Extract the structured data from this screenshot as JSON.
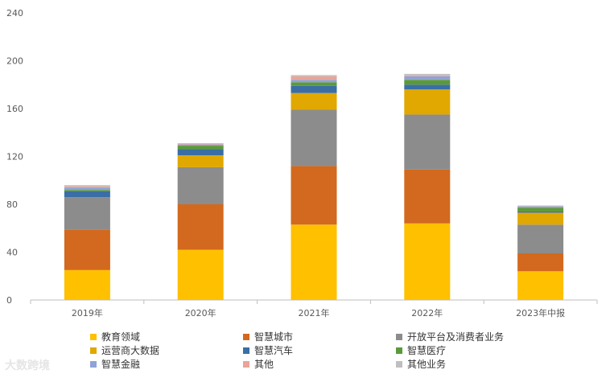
{
  "chart_data": {
    "type": "bar",
    "stacked": true,
    "categories": [
      "2019年",
      "2020年",
      "2021年",
      "2022年",
      "2023年中报"
    ],
    "ylim": [
      0,
      240
    ],
    "yticks": [
      0,
      40,
      80,
      120,
      160,
      200,
      240
    ],
    "grid": false,
    "legend_position": "bottom",
    "series": [
      {
        "name": "教育领域",
        "color": "#FFC000",
        "values": [
          25,
          42,
          63,
          64,
          24
        ]
      },
      {
        "name": "智慧城市",
        "color": "#D2691E",
        "values": [
          34,
          38,
          49,
          45,
          15
        ]
      },
      {
        "name": "开放平台及消费者业务",
        "color": "#8C8C8C",
        "values": [
          27,
          31,
          47,
          46,
          24
        ]
      },
      {
        "name": "运营商大数据",
        "color": "#E0A800",
        "values": [
          0,
          10,
          14,
          21,
          10
        ]
      },
      {
        "name": "智慧汽车",
        "color": "#3A6EA5",
        "values": [
          5,
          5,
          6,
          4,
          1
        ]
      },
      {
        "name": "智慧医疗",
        "color": "#5B9A3A",
        "values": [
          1,
          3,
          3,
          4,
          3
        ]
      },
      {
        "name": "智慧金融",
        "color": "#8FA3D6",
        "values": [
          2,
          1,
          2,
          3,
          1
        ]
      },
      {
        "name": "其他",
        "color": "#E8A598",
        "values": [
          1,
          1,
          3,
          1,
          0
        ]
      },
      {
        "name": "其他业务",
        "color": "#BFBFBF",
        "values": [
          1,
          0,
          1,
          1,
          1
        ]
      }
    ]
  },
  "watermark": "大数跨境"
}
